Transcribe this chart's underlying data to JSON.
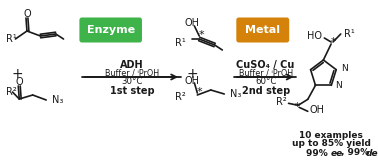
{
  "bg_color": "#ffffff",
  "enzyme_box_color": "#3db34a",
  "metal_box_color": "#d4820a",
  "enzyme_text": "Enzyme",
  "metal_text": "Metal",
  "step1_line1": "ADH",
  "step1_line2": "Buffer / ⁱPrOH",
  "step1_line3": "30°C",
  "step1_line4": "1st step",
  "step2_line1": "CuSO₄ / Cu",
  "step2_line2": "Buffer / ⁱPrOH",
  "step2_line3": "60°C",
  "step2_line4": "2nd step",
  "result1": "10 examples",
  "result2": "up to 85% yield",
  "result3a": "99% ",
  "result3b": "ee",
  "result3c": ", 99% ",
  "result3d": "de",
  "line_color": "#1a1a1a",
  "text_color": "#1a1a1a",
  "figsize": [
    3.78,
    1.67
  ],
  "dpi": 100
}
